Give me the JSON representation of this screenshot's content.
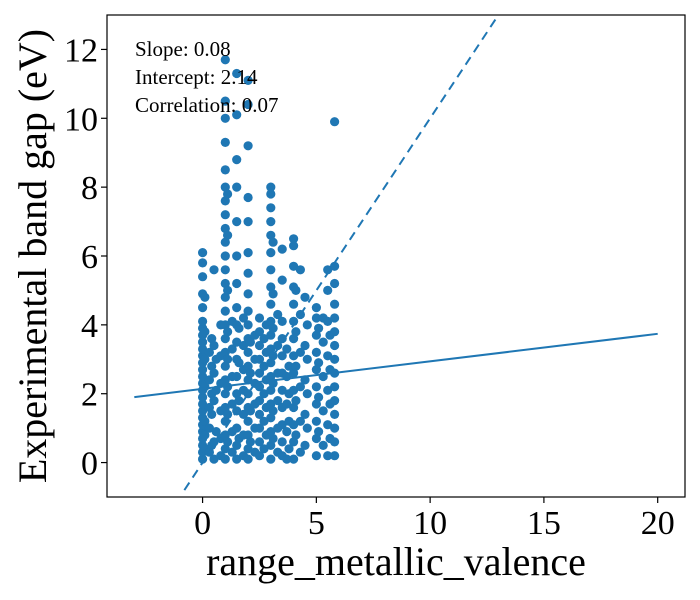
{
  "chart_data": {
    "type": "scatter",
    "title": "",
    "xlabel": "range_metallic_valence",
    "ylabel": "Experimental band gap (eV)",
    "xlim": [
      -4.2,
      21.2
    ],
    "ylim": [
      -1.0,
      13.0
    ],
    "x_ticks": [
      0,
      5,
      10,
      15,
      20
    ],
    "y_ticks": [
      0,
      2,
      4,
      6,
      8,
      10,
      12
    ],
    "grid": false,
    "annotations": [
      "Slope: 0.08",
      "Intercept: 2.14",
      "Correlation: 0.07"
    ],
    "color": "#1f77b4",
    "fit_line": {
      "slope": 0.08,
      "intercept": 2.14,
      "x_range": [
        -3,
        20
      ],
      "style": "solid"
    },
    "identity_line": {
      "slope": 1,
      "intercept": 0,
      "x_range": [
        -0.8,
        13.1
      ],
      "style": "dashed"
    },
    "points": [
      {
        "x": 0,
        "y": 0.1
      },
      {
        "x": 0,
        "y": 0.3
      },
      {
        "x": 0,
        "y": 0.5
      },
      {
        "x": 0,
        "y": 0.7
      },
      {
        "x": 0,
        "y": 0.9
      },
      {
        "x": 0,
        "y": 1.1
      },
      {
        "x": 0,
        "y": 1.3
      },
      {
        "x": 0,
        "y": 1.5
      },
      {
        "x": 0,
        "y": 1.7
      },
      {
        "x": 0,
        "y": 1.9
      },
      {
        "x": 0,
        "y": 2.1
      },
      {
        "x": 0,
        "y": 2.3
      },
      {
        "x": 0,
        "y": 2.5
      },
      {
        "x": 0,
        "y": 2.7
      },
      {
        "x": 0,
        "y": 2.9
      },
      {
        "x": 0,
        "y": 3.1
      },
      {
        "x": 0,
        "y": 3.3
      },
      {
        "x": 0,
        "y": 3.5
      },
      {
        "x": 0,
        "y": 3.7
      },
      {
        "x": 0,
        "y": 3.9
      },
      {
        "x": 0,
        "y": 4.1
      },
      {
        "x": 0,
        "y": 4.5
      },
      {
        "x": 0,
        "y": 4.9
      },
      {
        "x": 0,
        "y": 5.4
      },
      {
        "x": 0,
        "y": 5.8
      },
      {
        "x": 0,
        "y": 6.1
      },
      {
        "x": 0.1,
        "y": 0.4
      },
      {
        "x": 0.1,
        "y": 0.8
      },
      {
        "x": 0.1,
        "y": 1.2
      },
      {
        "x": 0.1,
        "y": 2.2
      },
      {
        "x": 0.1,
        "y": 3.0
      },
      {
        "x": 0.1,
        "y": 3.8
      },
      {
        "x": 0.1,
        "y": 4.8
      },
      {
        "x": 0.3,
        "y": 0.3
      },
      {
        "x": 0.3,
        "y": 1.0
      },
      {
        "x": 0.3,
        "y": 1.6
      },
      {
        "x": 0.3,
        "y": 2.4
      },
      {
        "x": 0.3,
        "y": 3.2
      },
      {
        "x": 0.4,
        "y": 0.5
      },
      {
        "x": 0.4,
        "y": 1.4
      },
      {
        "x": 0.4,
        "y": 2.0
      },
      {
        "x": 0.4,
        "y": 2.8
      },
      {
        "x": 0.4,
        "y": 3.6
      },
      {
        "x": 0.5,
        "y": 0.1
      },
      {
        "x": 0.5,
        "y": 0.6
      },
      {
        "x": 0.5,
        "y": 1.8
      },
      {
        "x": 0.5,
        "y": 2.6
      },
      {
        "x": 0.5,
        "y": 3.4
      },
      {
        "x": 0.5,
        "y": 5.6
      },
      {
        "x": 0.6,
        "y": 0.9
      },
      {
        "x": 0.6,
        "y": 2.1
      },
      {
        "x": 0.6,
        "y": 3.0
      },
      {
        "x": 0.8,
        "y": 0.2
      },
      {
        "x": 0.8,
        "y": 0.7
      },
      {
        "x": 0.8,
        "y": 1.5
      },
      {
        "x": 0.8,
        "y": 2.3
      },
      {
        "x": 0.8,
        "y": 3.1
      },
      {
        "x": 0.8,
        "y": 4.0
      },
      {
        "x": 1.0,
        "y": 0.1
      },
      {
        "x": 1.0,
        "y": 0.4
      },
      {
        "x": 1.0,
        "y": 0.8
      },
      {
        "x": 1.0,
        "y": 1.2
      },
      {
        "x": 1.0,
        "y": 1.6
      },
      {
        "x": 1.0,
        "y": 2.0
      },
      {
        "x": 1.0,
        "y": 2.4
      },
      {
        "x": 1.0,
        "y": 2.8
      },
      {
        "x": 1.0,
        "y": 3.2
      },
      {
        "x": 1.0,
        "y": 3.6
      },
      {
        "x": 1.0,
        "y": 4.0
      },
      {
        "x": 1.0,
        "y": 4.4
      },
      {
        "x": 1.0,
        "y": 4.8
      },
      {
        "x": 1.0,
        "y": 5.2
      },
      {
        "x": 1.0,
        "y": 5.6
      },
      {
        "x": 1.0,
        "y": 6.0
      },
      {
        "x": 1.0,
        "y": 6.4
      },
      {
        "x": 1.0,
        "y": 6.8
      },
      {
        "x": 1.0,
        "y": 7.2
      },
      {
        "x": 1.0,
        "y": 7.6
      },
      {
        "x": 1.0,
        "y": 8.0
      },
      {
        "x": 1.0,
        "y": 8.5
      },
      {
        "x": 1.0,
        "y": 9.3
      },
      {
        "x": 1.0,
        "y": 10.0
      },
      {
        "x": 1.0,
        "y": 10.5
      },
      {
        "x": 1.0,
        "y": 11.7
      },
      {
        "x": 1.1,
        "y": 0.6
      },
      {
        "x": 1.1,
        "y": 1.4
      },
      {
        "x": 1.1,
        "y": 2.2
      },
      {
        "x": 1.1,
        "y": 3.0
      },
      {
        "x": 1.1,
        "y": 3.8
      },
      {
        "x": 1.1,
        "y": 5.0
      },
      {
        "x": 1.1,
        "y": 6.6
      },
      {
        "x": 1.1,
        "y": 7.8
      },
      {
        "x": 1.3,
        "y": 0.3
      },
      {
        "x": 1.3,
        "y": 0.9
      },
      {
        "x": 1.3,
        "y": 1.7
      },
      {
        "x": 1.3,
        "y": 2.5
      },
      {
        "x": 1.3,
        "y": 3.3
      },
      {
        "x": 1.3,
        "y": 4.1
      },
      {
        "x": 1.5,
        "y": 0.1
      },
      {
        "x": 1.5,
        "y": 0.5
      },
      {
        "x": 1.5,
        "y": 1.0
      },
      {
        "x": 1.5,
        "y": 1.5
      },
      {
        "x": 1.5,
        "y": 2.0
      },
      {
        "x": 1.5,
        "y": 2.5
      },
      {
        "x": 1.5,
        "y": 3.0
      },
      {
        "x": 1.5,
        "y": 3.5
      },
      {
        "x": 1.5,
        "y": 4.0
      },
      {
        "x": 1.5,
        "y": 4.5
      },
      {
        "x": 1.5,
        "y": 5.2
      },
      {
        "x": 1.5,
        "y": 6.0
      },
      {
        "x": 1.5,
        "y": 7.0
      },
      {
        "x": 1.5,
        "y": 8.0
      },
      {
        "x": 1.5,
        "y": 8.8
      },
      {
        "x": 1.5,
        "y": 10.1
      },
      {
        "x": 1.5,
        "y": 11.3
      },
      {
        "x": 1.6,
        "y": 0.7
      },
      {
        "x": 1.6,
        "y": 1.8
      },
      {
        "x": 1.6,
        "y": 2.9
      },
      {
        "x": 1.6,
        "y": 3.9
      },
      {
        "x": 1.8,
        "y": 0.2
      },
      {
        "x": 1.8,
        "y": 0.8
      },
      {
        "x": 1.8,
        "y": 1.4
      },
      {
        "x": 1.8,
        "y": 2.1
      },
      {
        "x": 1.8,
        "y": 2.7
      },
      {
        "x": 1.8,
        "y": 3.4
      },
      {
        "x": 1.8,
        "y": 4.2
      },
      {
        "x": 2.0,
        "y": 0.1
      },
      {
        "x": 2.0,
        "y": 0.4
      },
      {
        "x": 2.0,
        "y": 0.8
      },
      {
        "x": 2.0,
        "y": 1.2
      },
      {
        "x": 2.0,
        "y": 1.6
      },
      {
        "x": 2.0,
        "y": 2.0
      },
      {
        "x": 2.0,
        "y": 2.4
      },
      {
        "x": 2.0,
        "y": 2.8
      },
      {
        "x": 2.0,
        "y": 3.2
      },
      {
        "x": 2.0,
        "y": 3.6
      },
      {
        "x": 2.0,
        "y": 4.0
      },
      {
        "x": 2.0,
        "y": 4.4
      },
      {
        "x": 2.0,
        "y": 4.9
      },
      {
        "x": 2.0,
        "y": 5.5
      },
      {
        "x": 2.0,
        "y": 6.1
      },
      {
        "x": 2.0,
        "y": 7.0
      },
      {
        "x": 2.0,
        "y": 7.7
      },
      {
        "x": 2.0,
        "y": 9.2
      },
      {
        "x": 2.0,
        "y": 10.4
      },
      {
        "x": 2.0,
        "y": 11.1
      },
      {
        "x": 2.1,
        "y": 0.6
      },
      {
        "x": 2.1,
        "y": 1.5
      },
      {
        "x": 2.1,
        "y": 2.6
      },
      {
        "x": 2.1,
        "y": 3.5
      },
      {
        "x": 2.3,
        "y": 0.3
      },
      {
        "x": 2.3,
        "y": 1.0
      },
      {
        "x": 2.3,
        "y": 1.7
      },
      {
        "x": 2.3,
        "y": 2.3
      },
      {
        "x": 2.3,
        "y": 3.0
      },
      {
        "x": 2.3,
        "y": 3.7
      },
      {
        "x": 2.5,
        "y": 0.2
      },
      {
        "x": 2.5,
        "y": 0.6
      },
      {
        "x": 2.5,
        "y": 1.0
      },
      {
        "x": 2.5,
        "y": 1.4
      },
      {
        "x": 2.5,
        "y": 1.8
      },
      {
        "x": 2.5,
        "y": 2.2
      },
      {
        "x": 2.5,
        "y": 2.6
      },
      {
        "x": 2.5,
        "y": 3.0
      },
      {
        "x": 2.5,
        "y": 3.4
      },
      {
        "x": 2.5,
        "y": 3.8
      },
      {
        "x": 2.5,
        "y": 4.2
      },
      {
        "x": 2.7,
        "y": 0.4
      },
      {
        "x": 2.7,
        "y": 1.2
      },
      {
        "x": 2.7,
        "y": 2.0
      },
      {
        "x": 2.7,
        "y": 2.8
      },
      {
        "x": 2.7,
        "y": 3.6
      },
      {
        "x": 2.8,
        "y": 0.8
      },
      {
        "x": 2.8,
        "y": 1.6
      },
      {
        "x": 2.8,
        "y": 2.4
      },
      {
        "x": 2.8,
        "y": 3.2
      },
      {
        "x": 2.8,
        "y": 4.0
      },
      {
        "x": 3.0,
        "y": 0.1
      },
      {
        "x": 3.0,
        "y": 0.5
      },
      {
        "x": 3.0,
        "y": 0.9
      },
      {
        "x": 3.0,
        "y": 1.3
      },
      {
        "x": 3.0,
        "y": 1.7
      },
      {
        "x": 3.0,
        "y": 2.1
      },
      {
        "x": 3.0,
        "y": 2.5
      },
      {
        "x": 3.0,
        "y": 2.9
      },
      {
        "x": 3.0,
        "y": 3.3
      },
      {
        "x": 3.0,
        "y": 3.7
      },
      {
        "x": 3.0,
        "y": 4.1
      },
      {
        "x": 3.0,
        "y": 4.6
      },
      {
        "x": 3.0,
        "y": 5.1
      },
      {
        "x": 3.0,
        "y": 5.6
      },
      {
        "x": 3.0,
        "y": 6.1
      },
      {
        "x": 3.0,
        "y": 6.6
      },
      {
        "x": 3.0,
        "y": 7.0
      },
      {
        "x": 3.0,
        "y": 7.4
      },
      {
        "x": 3.0,
        "y": 7.8
      },
      {
        "x": 3.0,
        "y": 8.0
      },
      {
        "x": 3.1,
        "y": 0.7
      },
      {
        "x": 3.1,
        "y": 1.5
      },
      {
        "x": 3.1,
        "y": 2.3
      },
      {
        "x": 3.1,
        "y": 3.1
      },
      {
        "x": 3.1,
        "y": 3.9
      },
      {
        "x": 3.1,
        "y": 4.9
      },
      {
        "x": 3.1,
        "y": 6.4
      },
      {
        "x": 3.3,
        "y": 0.3
      },
      {
        "x": 3.3,
        "y": 1.0
      },
      {
        "x": 3.3,
        "y": 1.8
      },
      {
        "x": 3.3,
        "y": 2.6
      },
      {
        "x": 3.3,
        "y": 3.4
      },
      {
        "x": 3.3,
        "y": 4.3
      },
      {
        "x": 3.5,
        "y": 0.2
      },
      {
        "x": 3.5,
        "y": 0.6
      },
      {
        "x": 3.5,
        "y": 1.1
      },
      {
        "x": 3.5,
        "y": 1.6
      },
      {
        "x": 3.5,
        "y": 2.1
      },
      {
        "x": 3.5,
        "y": 2.6
      },
      {
        "x": 3.5,
        "y": 3.1
      },
      {
        "x": 3.5,
        "y": 3.6
      },
      {
        "x": 3.5,
        "y": 4.1
      },
      {
        "x": 3.5,
        "y": 5.3
      },
      {
        "x": 3.5,
        "y": 6.2
      },
      {
        "x": 3.7,
        "y": 0.1
      },
      {
        "x": 3.7,
        "y": 0.9
      },
      {
        "x": 3.7,
        "y": 1.7
      },
      {
        "x": 3.7,
        "y": 2.5
      },
      {
        "x": 3.7,
        "y": 3.3
      },
      {
        "x": 3.8,
        "y": 0.4
      },
      {
        "x": 3.8,
        "y": 1.2
      },
      {
        "x": 3.8,
        "y": 2.0
      },
      {
        "x": 3.8,
        "y": 2.8
      },
      {
        "x": 4.0,
        "y": 0.1
      },
      {
        "x": 4.0,
        "y": 0.6
      },
      {
        "x": 4.0,
        "y": 1.1
      },
      {
        "x": 4.0,
        "y": 1.6
      },
      {
        "x": 4.0,
        "y": 2.1
      },
      {
        "x": 4.0,
        "y": 2.6
      },
      {
        "x": 4.0,
        "y": 3.1
      },
      {
        "x": 4.0,
        "y": 3.6
      },
      {
        "x": 4.0,
        "y": 4.1
      },
      {
        "x": 4.0,
        "y": 4.6
      },
      {
        "x": 4.0,
        "y": 5.1
      },
      {
        "x": 4.0,
        "y": 5.7
      },
      {
        "x": 4.0,
        "y": 6.3
      },
      {
        "x": 4.0,
        "y": 6.5
      },
      {
        "x": 4.1,
        "y": 0.8
      },
      {
        "x": 4.1,
        "y": 1.8
      },
      {
        "x": 4.1,
        "y": 2.8
      },
      {
        "x": 4.1,
        "y": 3.8
      },
      {
        "x": 4.1,
        "y": 5.0
      },
      {
        "x": 4.3,
        "y": 0.3
      },
      {
        "x": 4.3,
        "y": 1.2
      },
      {
        "x": 4.3,
        "y": 2.2
      },
      {
        "x": 4.3,
        "y": 3.2
      },
      {
        "x": 4.3,
        "y": 4.3
      },
      {
        "x": 4.3,
        "y": 5.6
      },
      {
        "x": 4.5,
        "y": 0.5
      },
      {
        "x": 4.5,
        "y": 1.4
      },
      {
        "x": 4.5,
        "y": 2.4
      },
      {
        "x": 4.5,
        "y": 3.4
      },
      {
        "x": 4.5,
        "y": 4.8
      },
      {
        "x": 4.6,
        "y": 1.0
      },
      {
        "x": 4.6,
        "y": 2.0
      },
      {
        "x": 4.6,
        "y": 3.0
      },
      {
        "x": 4.6,
        "y": 4.0
      },
      {
        "x": 5.0,
        "y": 0.2
      },
      {
        "x": 5.0,
        "y": 0.7
      },
      {
        "x": 5.0,
        "y": 1.2
      },
      {
        "x": 5.0,
        "y": 1.7
      },
      {
        "x": 5.0,
        "y": 2.2
      },
      {
        "x": 5.0,
        "y": 2.7
      },
      {
        "x": 5.0,
        "y": 3.2
      },
      {
        "x": 5.0,
        "y": 3.7
      },
      {
        "x": 5.0,
        "y": 4.2
      },
      {
        "x": 5.0,
        "y": 4.5
      },
      {
        "x": 5.1,
        "y": 0.9
      },
      {
        "x": 5.1,
        "y": 1.9
      },
      {
        "x": 5.1,
        "y": 2.9
      },
      {
        "x": 5.1,
        "y": 3.9
      },
      {
        "x": 5.3,
        "y": 0.5
      },
      {
        "x": 5.3,
        "y": 1.5
      },
      {
        "x": 5.3,
        "y": 2.5
      },
      {
        "x": 5.3,
        "y": 3.5
      },
      {
        "x": 5.3,
        "y": 4.2
      },
      {
        "x": 5.5,
        "y": 0.2
      },
      {
        "x": 5.5,
        "y": 1.1
      },
      {
        "x": 5.5,
        "y": 2.1
      },
      {
        "x": 5.5,
        "y": 3.1
      },
      {
        "x": 5.5,
        "y": 4.1
      },
      {
        "x": 5.5,
        "y": 5.0
      },
      {
        "x": 5.5,
        "y": 5.6
      },
      {
        "x": 5.6,
        "y": 0.7
      },
      {
        "x": 5.6,
        "y": 1.7
      },
      {
        "x": 5.6,
        "y": 2.7
      },
      {
        "x": 5.6,
        "y": 3.7
      },
      {
        "x": 5.8,
        "y": 0.2
      },
      {
        "x": 5.8,
        "y": 0.6
      },
      {
        "x": 5.8,
        "y": 1.0
      },
      {
        "x": 5.8,
        "y": 1.4
      },
      {
        "x": 5.8,
        "y": 1.8
      },
      {
        "x": 5.8,
        "y": 2.2
      },
      {
        "x": 5.8,
        "y": 2.6
      },
      {
        "x": 5.8,
        "y": 3.0
      },
      {
        "x": 5.8,
        "y": 3.4
      },
      {
        "x": 5.8,
        "y": 3.8
      },
      {
        "x": 5.8,
        "y": 4.2
      },
      {
        "x": 5.8,
        "y": 4.6
      },
      {
        "x": 5.8,
        "y": 5.2
      },
      {
        "x": 5.8,
        "y": 5.7
      },
      {
        "x": 5.8,
        "y": 9.9
      }
    ]
  }
}
